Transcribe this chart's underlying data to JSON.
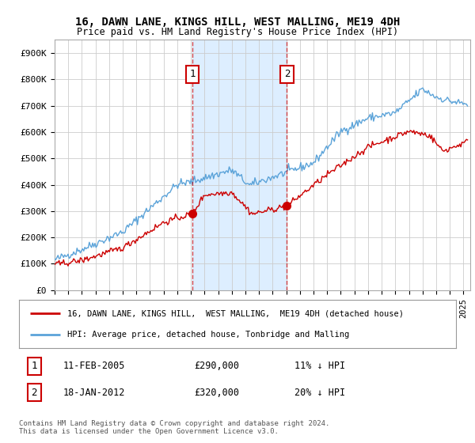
{
  "title": "16, DAWN LANE, KINGS HILL, WEST MALLING, ME19 4DH",
  "subtitle": "Price paid vs. HM Land Registry's House Price Index (HPI)",
  "ylabel_ticks": [
    "£0",
    "£100K",
    "£200K",
    "£300K",
    "£400K",
    "£500K",
    "£600K",
    "£700K",
    "£800K",
    "£900K"
  ],
  "ytick_values": [
    0,
    100000,
    200000,
    300000,
    400000,
    500000,
    600000,
    700000,
    800000,
    900000
  ],
  "ylim": [
    0,
    950000
  ],
  "xlim_start": 1995.0,
  "xlim_end": 2025.5,
  "hpi_color": "#5ba3d9",
  "price_color": "#cc0000",
  "marker1_x": 2005.1,
  "marker1_y": 290000,
  "marker2_x": 2012.05,
  "marker2_y": 320000,
  "shade_color": "#ddeeff",
  "legend_label1": "16, DAWN LANE, KINGS HILL,  WEST MALLING,  ME19 4DH (detached house)",
  "legend_label2": "HPI: Average price, detached house, Tonbridge and Malling",
  "table_row1": [
    "1",
    "11-FEB-2005",
    "£290,000",
    "11% ↓ HPI"
  ],
  "table_row2": [
    "2",
    "18-JAN-2012",
    "£320,000",
    "20% ↓ HPI"
  ],
  "footer": "Contains HM Land Registry data © Crown copyright and database right 2024.\nThis data is licensed under the Open Government Licence v3.0.",
  "background_color": "#ffffff",
  "plot_bg_color": "#ffffff"
}
